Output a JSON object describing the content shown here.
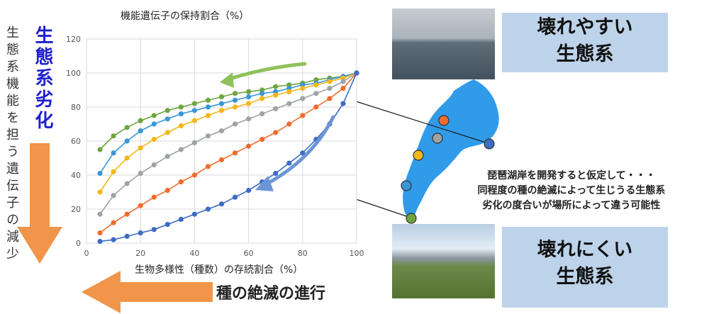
{
  "left_vertical_text": "生態系機能を担う遺伝子の減少",
  "left_blue_text": "生態系劣化",
  "bottom_arrow_label": "種の絶滅の進行",
  "badge_top": [
    "壊れやすい",
    "生態系"
  ],
  "badge_bottom": [
    "壊れにくい",
    "生態系"
  ],
  "lake_text": [
    "琵琶湖岸を開発すると仮定して・・・",
    "同程度の種の絶滅によって生じうる生態系",
    "劣化の度合いが場所によって違う可能性"
  ],
  "colors": {
    "blue_text": "#1f1fd0",
    "orange_arrow": "#f0954a",
    "lake": "#2f9be9",
    "badge": "#bdd3ea"
  },
  "lake_points": [
    {
      "name": "orange",
      "color": "#ee6c2e"
    },
    {
      "name": "gray",
      "color": "#9ea3a7"
    },
    {
      "name": "yellow",
      "color": "#f4b61a"
    },
    {
      "name": "lightblue",
      "color": "#3a96d6"
    },
    {
      "name": "darkblue",
      "color": "#3d6cc4"
    },
    {
      "name": "green",
      "color": "#6fa640"
    }
  ],
  "chart_data": {
    "type": "line",
    "xlabel": "生物多様性（種数）の存続割合（%）",
    "ylabel": "機能遺伝子の保持割合（%）",
    "xlim": [
      0,
      100
    ],
    "ylim": [
      0,
      120
    ],
    "xticks": [
      0,
      20,
      40,
      60,
      80,
      100
    ],
    "yticks": [
      0,
      20,
      40,
      60,
      80,
      100,
      120
    ],
    "x": [
      5,
      10,
      15,
      20,
      25,
      30,
      35,
      40,
      45,
      50,
      55,
      60,
      65,
      70,
      75,
      80,
      85,
      90,
      95,
      100
    ],
    "series": [
      {
        "color": "#6fa640",
        "values": [
          55,
          63,
          68,
          72,
          75,
          78,
          80,
          82,
          84,
          86,
          88,
          89,
          90,
          92,
          93,
          94,
          96,
          97,
          98,
          100
        ]
      },
      {
        "color": "#3a96d6",
        "values": [
          41,
          53,
          60,
          66,
          70,
          73,
          76,
          78,
          80,
          82,
          84,
          86,
          88,
          89,
          91,
          93,
          94,
          96,
          98,
          100
        ]
      },
      {
        "color": "#f4b61a",
        "values": [
          30,
          42,
          50,
          56,
          61,
          65,
          69,
          72,
          75,
          78,
          80,
          82,
          85,
          87,
          89,
          91,
          93,
          95,
          97,
          100
        ]
      },
      {
        "color": "#9ea3a7",
        "values": [
          17,
          28,
          35,
          41,
          46,
          51,
          55,
          59,
          63,
          66,
          70,
          73,
          76,
          79,
          82,
          85,
          88,
          91,
          95,
          100
        ]
      },
      {
        "color": "#ee6c2e",
        "values": [
          6,
          12,
          17,
          22,
          27,
          31,
          36,
          40,
          45,
          49,
          53,
          57,
          61,
          65,
          70,
          75,
          80,
          85,
          91,
          100
        ]
      },
      {
        "color": "#3d6cc4",
        "values": [
          1,
          2,
          4,
          6,
          8,
          11,
          14,
          17,
          20,
          23,
          27,
          31,
          36,
          41,
          47,
          53,
          61,
          70,
          82,
          100
        ]
      }
    ]
  }
}
